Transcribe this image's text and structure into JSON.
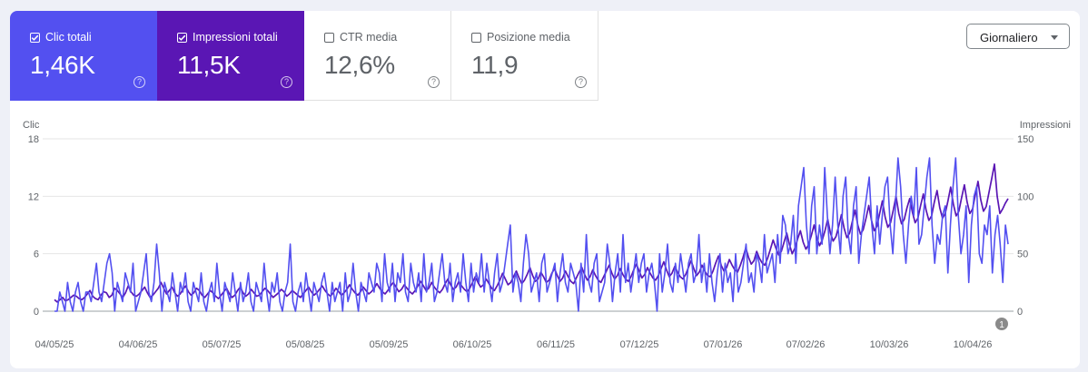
{
  "metrics": [
    {
      "label": "Clic totali",
      "value": "1,46K",
      "checked": true,
      "color": "#5350f0"
    },
    {
      "label": "Impressioni totali",
      "value": "11,5K",
      "checked": true,
      "color": "#5a16b4"
    },
    {
      "label": "CTR media",
      "value": "12,6%",
      "checked": false
    },
    {
      "label": "Posizione media",
      "value": "11,9",
      "checked": false
    }
  ],
  "help_glyph": "?",
  "dropdown": {
    "label": "Giornaliero"
  },
  "annotation": {
    "label": "1",
    "date": "18/04/26"
  },
  "chart_data": {
    "type": "line",
    "left_axis": {
      "title": "Clic",
      "ticks": [
        0,
        6,
        12,
        18
      ],
      "range": [
        0,
        18
      ]
    },
    "right_axis": {
      "title": "Impressioni",
      "ticks": [
        0,
        50,
        100,
        150
      ],
      "range": [
        0,
        150
      ]
    },
    "x_ticks": [
      "04/05/25",
      "04/06/25",
      "05/07/25",
      "05/08/25",
      "05/09/25",
      "06/10/25",
      "06/11/25",
      "07/12/25",
      "07/01/26",
      "07/02/26",
      "10/03/26",
      "10/04/26"
    ],
    "grid": true,
    "series": [
      {
        "name": "Clic",
        "axis": "left",
        "color": "#5350f0",
        "x_start": "04/05/25",
        "x_end": "15/05/26",
        "frequency": "daily",
        "values": [
          0,
          0,
          2,
          1,
          0,
          3,
          1,
          0,
          2,
          3,
          1,
          0,
          2,
          2,
          1,
          3,
          5,
          2,
          1,
          3,
          5,
          6,
          4,
          0,
          3,
          2,
          1,
          4,
          3,
          2,
          5,
          0,
          1,
          2,
          4,
          6,
          2,
          1,
          3,
          7,
          4,
          0,
          3,
          2,
          1,
          4,
          2,
          0,
          3,
          2,
          4,
          1,
          0,
          3,
          2,
          1,
          4,
          1,
          0,
          2,
          3,
          1,
          5,
          2,
          0,
          3,
          2,
          1,
          4,
          2,
          0,
          3,
          1,
          2,
          4,
          1,
          0,
          3,
          2,
          1,
          5,
          2,
          0,
          3,
          2,
          4,
          1,
          0,
          2,
          3,
          7,
          1,
          0,
          2,
          3,
          1,
          4,
          2,
          0,
          3,
          2,
          1,
          3,
          4,
          2,
          0,
          3,
          1,
          2,
          3,
          0,
          4,
          1,
          2,
          5,
          2,
          0,
          3,
          2,
          1,
          4,
          3,
          2,
          5,
          4,
          1,
          6,
          3,
          2,
          5,
          1,
          4,
          3,
          6,
          2,
          1,
          5,
          3,
          2,
          4,
          1,
          6,
          2,
          3,
          5,
          1,
          2,
          4,
          6,
          3,
          2,
          5,
          1,
          3,
          4,
          2,
          6,
          3,
          1,
          5,
          2,
          4,
          3,
          6,
          2,
          5,
          3,
          1,
          4,
          6,
          2,
          3,
          5,
          7,
          9,
          2,
          4,
          3,
          1,
          5,
          8,
          6,
          2,
          3,
          4,
          1,
          5,
          6,
          2,
          3,
          4,
          5,
          1,
          4,
          6,
          3,
          2,
          5,
          4,
          3,
          0,
          5,
          2,
          8,
          3,
          2,
          5,
          6,
          1,
          2,
          3,
          7,
          5,
          1,
          4,
          6,
          2,
          8,
          3,
          5,
          2,
          4,
          6,
          3,
          5,
          6,
          2,
          4,
          5,
          3,
          0,
          6,
          2,
          4,
          7,
          3,
          2,
          5,
          3,
          6,
          4,
          2,
          5,
          6,
          3,
          4,
          8,
          3,
          5,
          2,
          6,
          3,
          1,
          4,
          6,
          2,
          5,
          3,
          4,
          1,
          6,
          2,
          3,
          5,
          7,
          3,
          4,
          2,
          6,
          5,
          3,
          8,
          4,
          5,
          6,
          3,
          8,
          5,
          10,
          9,
          6,
          7,
          10,
          5,
          11,
          13,
          15,
          9,
          6,
          11,
          13,
          6,
          9,
          7,
          15,
          10,
          6,
          9,
          14,
          9,
          6,
          12,
          14,
          8,
          6,
          11,
          13,
          5,
          8,
          10,
          12,
          14,
          9,
          6,
          11,
          7,
          10,
          13,
          14,
          9,
          6,
          11,
          16,
          13,
          8,
          5,
          9,
          12,
          10,
          15,
          7,
          8,
          11,
          14,
          16,
          9,
          5,
          8,
          7,
          10,
          11,
          4,
          9,
          13,
          16,
          10,
          6,
          8,
          11,
          3,
          9,
          12,
          13,
          6,
          5,
          9,
          8,
          11,
          4,
          8,
          10,
          7,
          3,
          9,
          7
        ],
        "value_note": ""
      },
      {
        "name": "Impressioni",
        "axis": "right",
        "color": "#5a16b4",
        "x_start": "04/05/25",
        "x_end": "15/05/26",
        "frequency": "daily",
        "values": [
          10,
          8,
          10,
          12,
          9,
          10,
          12,
          14,
          13,
          11,
          10,
          12,
          15,
          18,
          13,
          11,
          10,
          14,
          17,
          16,
          12,
          14,
          20,
          18,
          15,
          12,
          16,
          22,
          17,
          14,
          13,
          15,
          18,
          21,
          16,
          12,
          14,
          17,
          20,
          25,
          20,
          15,
          18,
          21,
          16,
          13,
          15,
          19,
          22,
          17,
          14,
          16,
          20,
          18,
          14,
          12,
          15,
          18,
          16,
          13,
          11,
          14,
          17,
          20,
          15,
          12,
          14,
          18,
          21,
          16,
          13,
          15,
          19,
          16,
          13,
          14,
          17,
          20,
          18,
          15,
          12,
          14,
          16,
          19,
          17,
          13,
          15,
          18,
          16,
          14,
          12,
          15,
          18,
          21,
          17,
          14,
          16,
          19,
          22,
          18,
          15,
          13,
          16,
          20,
          17,
          14,
          16,
          19,
          23,
          19,
          16,
          14,
          17,
          21,
          18,
          15,
          17,
          20,
          24,
          20,
          17,
          15,
          18,
          22,
          25,
          21,
          17,
          19,
          23,
          20,
          17,
          15,
          18,
          22,
          26,
          22,
          18,
          20,
          25,
          21,
          18,
          16,
          19,
          24,
          28,
          23,
          19,
          21,
          26,
          22,
          19,
          17,
          20,
          25,
          30,
          25,
          21,
          23,
          28,
          24,
          20,
          18,
          22,
          27,
          33,
          28,
          23,
          25,
          30,
          35,
          29,
          24,
          27,
          32,
          38,
          31,
          26,
          28,
          34,
          30,
          25,
          27,
          33,
          37,
          31,
          26,
          29,
          35,
          30,
          26,
          24,
          29,
          34,
          38,
          32,
          27,
          30,
          36,
          31,
          27,
          25,
          30,
          35,
          40,
          33,
          28,
          31,
          37,
          32,
          28,
          26,
          30,
          36,
          41,
          35,
          29,
          32,
          38,
          33,
          29,
          27,
          31,
          37,
          43,
          36,
          30,
          33,
          39,
          34,
          30,
          28,
          32,
          38,
          44,
          37,
          31,
          34,
          40,
          35,
          31,
          30,
          35,
          42,
          48,
          40,
          35,
          38,
          45,
          40,
          36,
          34,
          40,
          47,
          55,
          47,
          41,
          44,
          52,
          46,
          42,
          40,
          46,
          54,
          62,
          55,
          49,
          52,
          60,
          68,
          58,
          50,
          55,
          63,
          70,
          60,
          54,
          58,
          66,
          75,
          64,
          57,
          62,
          70,
          80,
          68,
          61,
          65,
          74,
          84,
          72,
          64,
          68,
          78,
          88,
          75,
          67,
          71,
          81,
          92,
          79,
          70,
          74,
          85,
          96,
          82,
          73,
          77,
          88,
          100,
          85,
          76,
          80,
          90,
          98,
          86,
          77,
          81,
          92,
          102,
          88,
          79,
          83,
          95,
          105,
          90,
          81,
          85,
          96,
          108,
          93,
          83,
          87,
          99,
          110,
          95,
          85,
          89,
          101,
          113,
          97,
          87,
          91,
          103,
          115,
          128,
          100,
          85,
          89,
          94,
          98
        ],
        "value_note": ""
      }
    ]
  }
}
